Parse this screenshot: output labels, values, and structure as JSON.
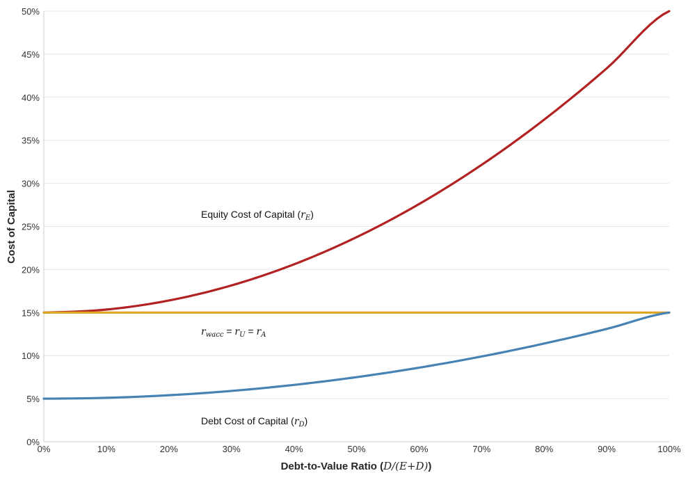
{
  "chart_data": {
    "type": "line",
    "title": "",
    "xlabel": "Debt-to-Value Ratio",
    "xlabel_math": "D/(E+D)",
    "ylabel": "Cost of Capital",
    "xlim": [
      0,
      1
    ],
    "ylim": [
      0,
      0.5
    ],
    "x_ticks": [
      "0%",
      "10%",
      "20%",
      "30%",
      "40%",
      "50%",
      "60%",
      "70%",
      "80%",
      "90%",
      "100%"
    ],
    "y_ticks": [
      "0%",
      "5%",
      "10%",
      "15%",
      "20%",
      "25%",
      "30%",
      "35%",
      "40%",
      "45%",
      "50%"
    ],
    "grid": true,
    "x": [
      0,
      0.1,
      0.2,
      0.3,
      0.4,
      0.5,
      0.6,
      0.7,
      0.8,
      0.9,
      1.0
    ],
    "series": [
      {
        "name": "Equity Cost of Capital",
        "symbol": "r",
        "subscript": "E",
        "color": "#b22222",
        "values": [
          0.15,
          0.1535,
          0.164,
          0.1815,
          0.206,
          0.2375,
          0.276,
          0.3215,
          0.374,
          0.4335,
          0.5
        ]
      },
      {
        "name": "",
        "color": "#dba520",
        "values": [
          0.15,
          0.15,
          0.15,
          0.15,
          0.15,
          0.15,
          0.15,
          0.15,
          0.15,
          0.15,
          0.15
        ]
      },
      {
        "name": "Debt Cost of Capital",
        "symbol": "r",
        "subscript": "D",
        "color": "#4682b4",
        "values": [
          0.05,
          0.051,
          0.054,
          0.059,
          0.066,
          0.075,
          0.086,
          0.099,
          0.114,
          0.131,
          0.15
        ]
      }
    ],
    "annotations": {
      "equity": {
        "text": "Equity Cost of Capital (",
        "symbol": "r",
        "subscript": "E",
        "close": ")"
      },
      "wacc": {
        "r1": "r",
        "s1": "wacc",
        "eq": " = ",
        "r2": "r",
        "s2": "U",
        "r3": "r",
        "s3": "A"
      },
      "debt": {
        "text": "Debt Cost of Capital (",
        "symbol": "r",
        "subscript": "D",
        "close": ")"
      }
    }
  }
}
